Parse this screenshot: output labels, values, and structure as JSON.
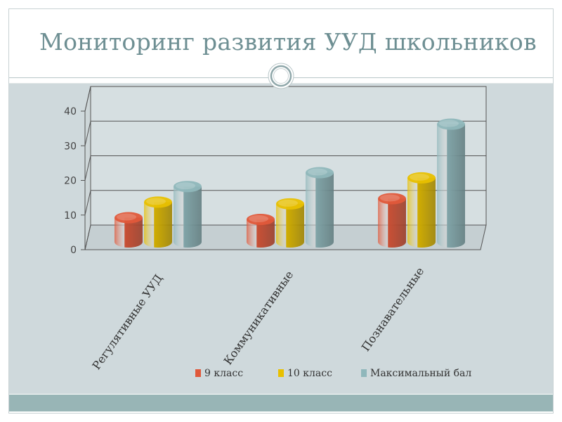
{
  "slide": {
    "title": "Мониторинг развития УУД школьников"
  },
  "colors": {
    "title": "#6e8f93",
    "panel": "#cfd9dc",
    "band": "#98b5b6",
    "series": [
      "#e0583a",
      "#e8c000",
      "#8fb7bb"
    ]
  },
  "chart_data": {
    "type": "bar",
    "style": "3d-cylinder",
    "title": "",
    "xlabel": "",
    "ylabel": "",
    "categories": [
      "Регулятивные УУД",
      "Коммуникативные",
      "Познавательные"
    ],
    "series": [
      {
        "name": "9 класс",
        "values": [
          7,
          6.5,
          12.5
        ]
      },
      {
        "name": "10 класс",
        "values": [
          11.5,
          11,
          18.5
        ]
      },
      {
        "name": "Максимальный бал",
        "values": [
          16,
          20,
          34
        ]
      }
    ],
    "ylim": [
      0,
      40
    ],
    "yticks": [
      "0",
      "10",
      "20",
      "30",
      "40"
    ],
    "grid": true,
    "legend": "bottom"
  }
}
